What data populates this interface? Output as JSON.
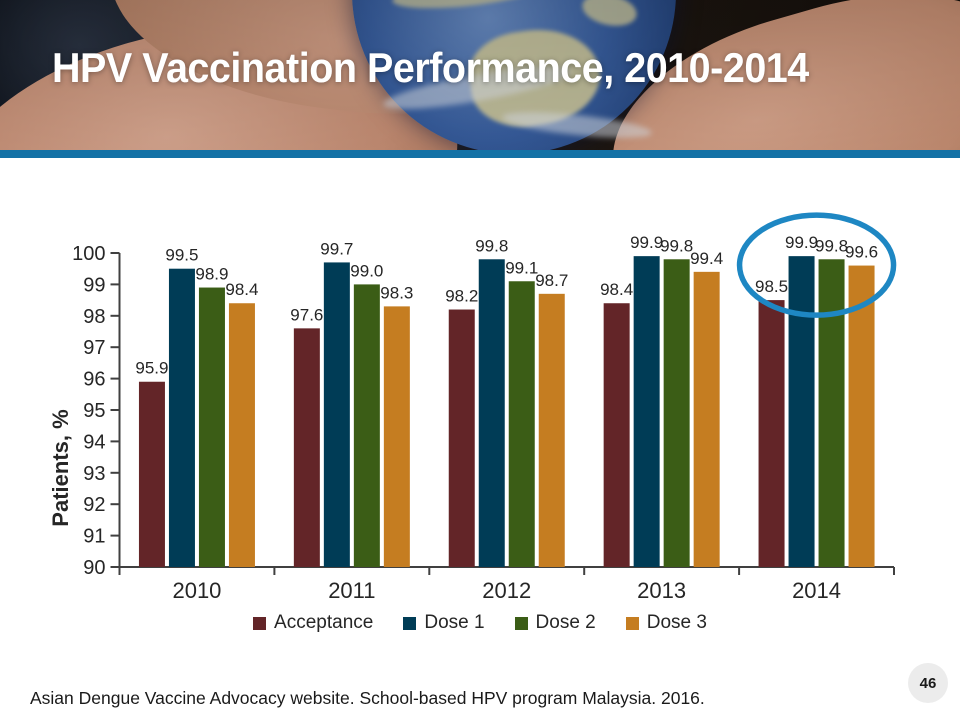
{
  "slide": {
    "title": "HPV Vaccination Performance, 2010-2014",
    "footer": "Asian Dengue Vaccine Advocacy website. School-based HPV program Malaysia. 2016.",
    "page_number": "46",
    "accent_color": "#1472a6"
  },
  "chart_data": {
    "type": "bar",
    "title": "",
    "xlabel": "",
    "ylabel": "Patients, %",
    "ylim": [
      90,
      100
    ],
    "ytick_step": 1,
    "grid": false,
    "legend_position": "bottom",
    "categories": [
      "2010",
      "2011",
      "2012",
      "2013",
      "2014"
    ],
    "series": [
      {
        "name": "Acceptance",
        "color": "#632528",
        "values": [
          95.9,
          97.6,
          98.2,
          98.4,
          98.5
        ]
      },
      {
        "name": "Dose 1",
        "color": "#003c56",
        "values": [
          99.5,
          99.7,
          99.8,
          99.9,
          99.9
        ]
      },
      {
        "name": "Dose 2",
        "color": "#3b5d16",
        "values": [
          98.9,
          99.0,
          99.1,
          99.8,
          99.8
        ]
      },
      {
        "name": "Dose 3",
        "color": "#c57d21",
        "values": [
          98.4,
          98.3,
          98.7,
          99.4,
          99.6
        ]
      }
    ],
    "annotation": {
      "shape": "ellipse",
      "target_category": "2014",
      "color": "#1e87c3"
    }
  }
}
